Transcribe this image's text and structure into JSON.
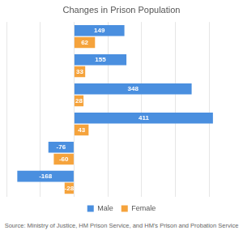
{
  "chart_data": {
    "type": "bar",
    "title": "Changes in Prison Population",
    "orientation": "horizontal",
    "categories": [
      null,
      null,
      null,
      null,
      null,
      null
    ],
    "series": [
      {
        "name": "Male",
        "color": "#4a8fdf",
        "values": [
          149,
          155,
          348,
          411,
          -76,
          -168
        ]
      },
      {
        "name": "Female",
        "color": "#f5a33c",
        "values": [
          62,
          33,
          28,
          43,
          -60,
          -28
        ]
      }
    ],
    "xlim": [
      -200,
      500
    ],
    "xticks": [
      -200,
      -100,
      0,
      100,
      200,
      300,
      400,
      500
    ],
    "grid": true,
    "legend": "bottom",
    "data_labels": true,
    "tick_labels": false,
    "annotations": [
      "Source: Ministry of Justice, HM Prison Service, and HM's Prison and Probation Service"
    ]
  }
}
